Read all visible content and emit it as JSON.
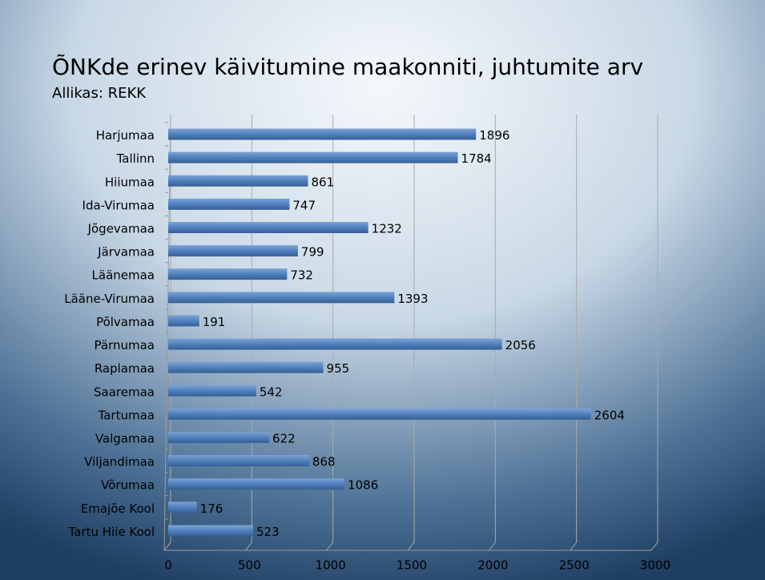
{
  "chart_data": {
    "type": "bar",
    "orientation": "horizontal",
    "title": "ÕNKde erinev käivitumine maakonniti, juhtumite arv",
    "subtitle": "Allikas: REKK",
    "categories": [
      "Harjumaa",
      "Tallinn",
      "Hiiumaa",
      "Ida-Virumaa",
      "Jõgevamaa",
      "Järvamaa",
      "Läänemaa",
      "Lääne-Virumaa",
      "Põlvamaa",
      "Pärnumaa",
      "Raplamaa",
      "Saaremaa",
      "Tartumaa",
      "Valgamaa",
      "Viljandimaa",
      "Võrumaa",
      "Emajõe Kool",
      "Tartu Hiie Kool"
    ],
    "values": [
      1896,
      1784,
      861,
      747,
      1232,
      799,
      732,
      1393,
      191,
      2056,
      955,
      542,
      2604,
      622,
      868,
      1086,
      176,
      523
    ],
    "color": "#4f81bd",
    "xlim": [
      0,
      3000
    ],
    "xticks": [
      0,
      500,
      1000,
      1500,
      2000,
      2500,
      3000
    ],
    "grid": true
  }
}
